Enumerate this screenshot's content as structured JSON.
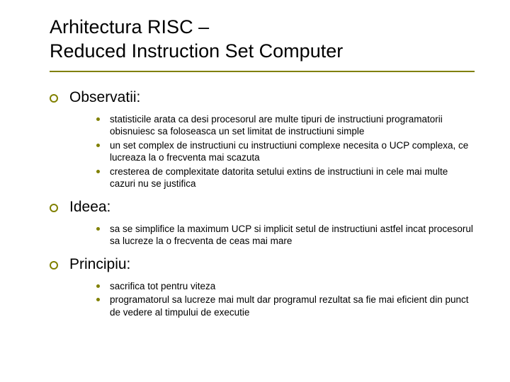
{
  "title_line1": "Arhitectura RISC –",
  "title_line2": "Reduced Instruction Set Computer",
  "sections": [
    {
      "heading": "Observatii:",
      "items": [
        "statisticile arata ca desi procesorul are multe tipuri de instructiuni programatorii obisnuiesc sa foloseasca un set limitat de instructiuni simple",
        "un set complex de instructiuni cu instructiuni complexe necesita o UCP complexa, ce lucreaza la o frecventa mai scazuta",
        "cresterea de complexitate datorita setului extins de instructiuni in cele mai multe cazuri nu se justifica"
      ]
    },
    {
      "heading": "Ideea:",
      "items": [
        "sa se simplifice la maximum UCP si implicit setul de instructiuni astfel incat procesorul sa lucreze la o frecventa de ceas mai mare"
      ]
    },
    {
      "heading": "Principiu:",
      "items": [
        "sacrifica tot pentru viteza",
        "programatorul sa lucreze mai mult dar programul rezultat sa fie mai eficient din punct de vedere al timpului de executie"
      ]
    }
  ],
  "colors": {
    "accent": "#808000",
    "text": "#000000",
    "background": "#ffffff"
  },
  "typography": {
    "title_fontsize": 27,
    "heading_fontsize": 21,
    "body_fontsize": 13.5,
    "font_family": "Arial"
  }
}
